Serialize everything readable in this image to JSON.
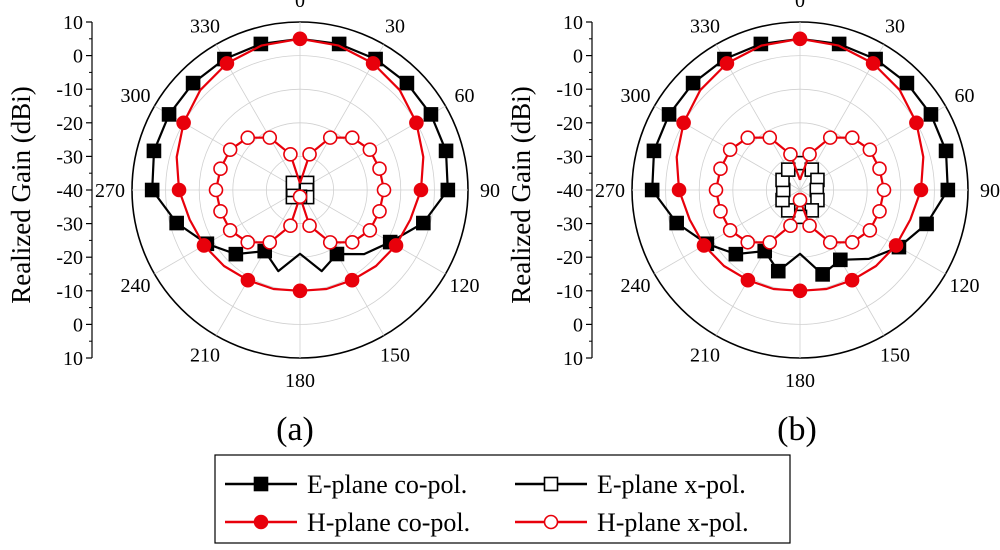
{
  "colors": {
    "e_plane": "#000000",
    "h_plane": "#e8000b",
    "grid": "#d0d0d0"
  },
  "chart_data": [
    {
      "type": "polar-line",
      "panel_label": "(a)",
      "ylabel": "Realized Gain (dBi)",
      "radial_axis": {
        "min": -40,
        "max": 10,
        "rings": [
          10,
          0,
          -10,
          -20,
          -30,
          -40
        ],
        "tick_labels_top": [
          "10",
          "0",
          "-10",
          "-20",
          "-30",
          "-40"
        ],
        "tick_labels_bottom": [
          "-30",
          "-20",
          "-10",
          "0",
          "10"
        ]
      },
      "angle_labels": [
        "0",
        "30",
        "60",
        "90",
        "120",
        "150",
        "180",
        "210",
        "240",
        "270",
        "300",
        "330"
      ],
      "series": [
        {
          "name": "E-plane co-pol.",
          "marker": "square-filled",
          "color_key": "e_plane",
          "angles": [
            0,
            15,
            30,
            45,
            60,
            75,
            90,
            105,
            120,
            135,
            150,
            165,
            180,
            195,
            210,
            225,
            240,
            255,
            270,
            285,
            300,
            315,
            330,
            345,
            360
          ],
          "values": [
            5,
            5,
            5,
            5,
            5,
            5,
            4,
            -2,
            -9,
            -13,
            -18,
            -15,
            -21,
            -15,
            -19,
            -13,
            -8,
            -2,
            4,
            5,
            5,
            5,
            5,
            5,
            5
          ],
          "marker_angles": [
            345,
            15,
            30,
            45,
            60,
            75,
            90,
            105,
            120,
            150,
            210,
            225,
            240,
            255,
            270,
            285,
            300,
            315,
            330
          ]
        },
        {
          "name": "H-plane co-pol.",
          "marker": "circle-filled",
          "color_key": "h_plane",
          "angles": [
            0,
            15,
            30,
            45,
            60,
            75,
            90,
            105,
            120,
            135,
            150,
            165,
            180,
            195,
            210,
            225,
            240,
            255,
            270,
            285,
            300,
            315,
            330,
            345,
            360
          ],
          "values": [
            5,
            4.5,
            3.5,
            2,
            0,
            -2,
            -4,
            -6,
            -7,
            -8,
            -9,
            -9.5,
            -10,
            -9.5,
            -9,
            -8,
            -7,
            -6,
            -4,
            -2,
            0,
            2,
            3.5,
            4.5,
            5
          ],
          "marker_angles": [
            0,
            30,
            60,
            90,
            120,
            150,
            180,
            210,
            240,
            270,
            300,
            330
          ]
        },
        {
          "name": "E-plane x-pol.",
          "marker": "square-open",
          "color_key": "e_plane",
          "angles": [
            0,
            45,
            90,
            135,
            180,
            225,
            270,
            315,
            360
          ],
          "values": [
            -38,
            -37,
            -38,
            -37,
            -38,
            -37,
            -38,
            -37,
            -38
          ],
          "marker_angles": [
            0,
            45,
            90,
            135,
            180,
            225,
            270,
            315
          ]
        },
        {
          "name": "H-plane x-pol.",
          "marker": "circle-open",
          "color_key": "h_plane",
          "angles": [
            0,
            15,
            30,
            45,
            60,
            75,
            90,
            105,
            120,
            135,
            150,
            165,
            180,
            195,
            210,
            225,
            240,
            255,
            270,
            285,
            300,
            315,
            330,
            345,
            360
          ],
          "values": [
            -38,
            -29,
            -22,
            -18,
            -16,
            -15.5,
            -15,
            -15.5,
            -16,
            -18,
            -22,
            -29,
            -38,
            -29,
            -22,
            -18,
            -16,
            -15.5,
            -15,
            -15.5,
            -16,
            -18,
            -22,
            -29,
            -38
          ],
          "marker_angles": [
            15,
            30,
            45,
            60,
            75,
            90,
            105,
            120,
            135,
            150,
            165,
            180,
            195,
            210,
            225,
            240,
            255,
            270,
            285,
            300,
            315,
            330,
            345
          ]
        }
      ]
    },
    {
      "type": "polar-line",
      "panel_label": "(b)",
      "ylabel": "Realized Gain (dBi)",
      "radial_axis": {
        "min": -40,
        "max": 10,
        "rings": [
          10,
          0,
          -10,
          -20,
          -30,
          -40
        ],
        "tick_labels_top": [
          "10",
          "0",
          "-10",
          "-20",
          "-30",
          "-40"
        ],
        "tick_labels_bottom": [
          "-30",
          "-20",
          "-10",
          "0",
          "10"
        ]
      },
      "angle_labels": [
        "0",
        "30",
        "60",
        "90",
        "120",
        "150",
        "180",
        "210",
        "240",
        "270",
        "300",
        "330"
      ],
      "series": [
        {
          "name": "E-plane co-pol.",
          "marker": "square-filled",
          "color_key": "e_plane",
          "angles": [
            0,
            15,
            30,
            45,
            60,
            75,
            90,
            105,
            120,
            135,
            150,
            165,
            180,
            195,
            210,
            225,
            240,
            255,
            270,
            285,
            300,
            315,
            330,
            345,
            360
          ],
          "values": [
            5,
            5,
            5,
            5,
            5,
            5,
            4,
            -1,
            -6,
            -11,
            -16,
            -14,
            -21,
            -15,
            -19,
            -13,
            -8,
            -2,
            4,
            5,
            5,
            5,
            5,
            5,
            5
          ],
          "marker_angles": [
            345,
            15,
            30,
            45,
            60,
            75,
            90,
            105,
            120,
            150,
            165,
            195,
            210,
            225,
            240,
            255,
            270,
            285,
            300,
            315,
            330
          ]
        },
        {
          "name": "H-plane co-pol.",
          "marker": "circle-filled",
          "color_key": "h_plane",
          "angles": [
            0,
            15,
            30,
            45,
            60,
            75,
            90,
            105,
            120,
            135,
            150,
            165,
            180,
            195,
            210,
            225,
            240,
            255,
            270,
            285,
            300,
            315,
            330,
            345,
            360
          ],
          "values": [
            5,
            4.5,
            3.5,
            2,
            0,
            -2,
            -4,
            -6,
            -7,
            -8,
            -9,
            -9.5,
            -10,
            -9.5,
            -9,
            -8,
            -7,
            -6,
            -4,
            -2,
            0,
            2,
            3.5,
            4.5,
            5
          ],
          "marker_angles": [
            0,
            30,
            60,
            90,
            120,
            150,
            180,
            210,
            240,
            270,
            300,
            330
          ]
        },
        {
          "name": "E-plane x-pol.",
          "marker": "square-open",
          "color_key": "e_plane",
          "angles": [
            0,
            30,
            60,
            90,
            120,
            150,
            180,
            210,
            240,
            270,
            300,
            330,
            360
          ],
          "values": [
            -32,
            -33,
            -34,
            -35,
            -34,
            -33,
            -32,
            -33,
            -34,
            -35,
            -34,
            -33,
            -32
          ],
          "marker_angles": [
            0,
            30,
            60,
            90,
            120,
            150,
            180,
            210,
            240,
            270,
            300,
            330
          ]
        },
        {
          "name": "H-plane x-pol.",
          "marker": "circle-open",
          "color_key": "h_plane",
          "angles": [
            0,
            15,
            30,
            45,
            60,
            75,
            90,
            105,
            120,
            135,
            150,
            165,
            180,
            195,
            210,
            225,
            240,
            255,
            270,
            285,
            300,
            315,
            330,
            345,
            360
          ],
          "values": [
            -37,
            -29,
            -22,
            -18,
            -16,
            -15.5,
            -15,
            -15.5,
            -16,
            -18,
            -22,
            -29,
            -37,
            -29,
            -22,
            -18,
            -16,
            -15.5,
            -15,
            -15.5,
            -16,
            -18,
            -22,
            -29,
            -37
          ],
          "marker_angles": [
            15,
            30,
            45,
            60,
            75,
            90,
            105,
            120,
            135,
            150,
            165,
            180,
            195,
            210,
            225,
            240,
            255,
            270,
            285,
            300,
            315,
            330,
            345
          ]
        }
      ]
    }
  ],
  "legend": {
    "items": [
      {
        "label": "E-plane co-pol.",
        "marker": "square-filled",
        "color_key": "e_plane"
      },
      {
        "label": "E-plane x-pol.",
        "marker": "square-open",
        "color_key": "e_plane"
      },
      {
        "label": "H-plane co-pol.",
        "marker": "circle-filled",
        "color_key": "h_plane"
      },
      {
        "label": "H-plane x-pol.",
        "marker": "circle-open",
        "color_key": "h_plane"
      }
    ]
  }
}
